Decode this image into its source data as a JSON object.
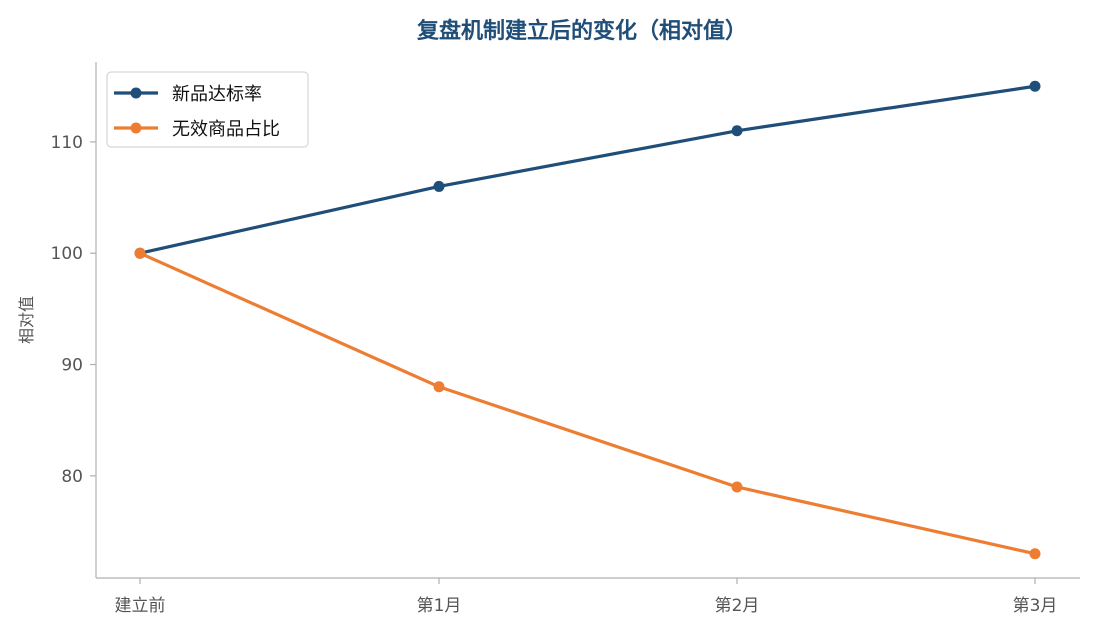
{
  "chart_data": {
    "type": "line",
    "title": "复盘机制建立后的变化（相对值）",
    "xlabel": "",
    "ylabel": "相对值",
    "categories": [
      "建立前",
      "第1月",
      "第2月",
      "第3月"
    ],
    "yticks": [
      80,
      90,
      100,
      110
    ],
    "ylim": [
      71,
      117
    ],
    "grid": false,
    "legend_position": "top-left",
    "series": [
      {
        "name": "新品达标率",
        "color": "#1f4e79",
        "values": [
          100,
          106,
          111,
          115
        ]
      },
      {
        "name": "无效商品占比",
        "color": "#ed7d31",
        "values": [
          100,
          88,
          79,
          73
        ]
      }
    ]
  },
  "colors": {
    "title": "#1f4e79",
    "axis": "#b0b0b0",
    "tick_text": "#555555"
  }
}
